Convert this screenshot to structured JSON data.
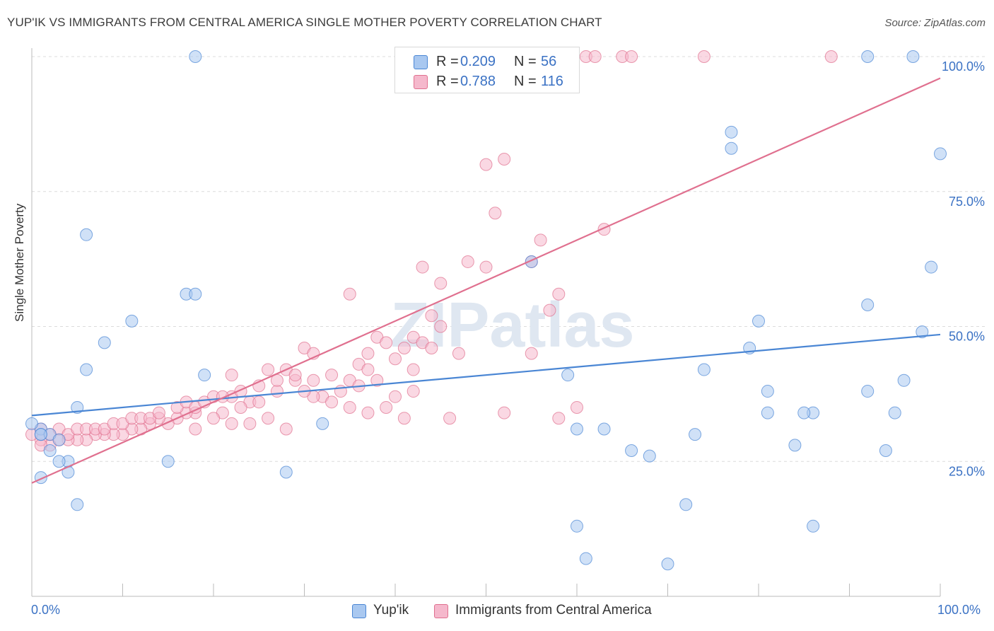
{
  "title": "YUP'IK VS IMMIGRANTS FROM CENTRAL AMERICA SINGLE MOTHER POVERTY CORRELATION CHART",
  "source": "Source: ZipAtlas.com",
  "watermark": "ZIPatlas",
  "stats": [
    {
      "r_label": "R =",
      "r_value": "0.209",
      "n_label": "N =",
      "n_value": "56",
      "color": "#a9c8f0"
    },
    {
      "r_label": "R =",
      "r_value": "0.788",
      "n_label": "N =",
      "n_value": "116",
      "color": "#f5b8cc"
    }
  ],
  "legend": [
    {
      "label": "Yup'ik",
      "color": "#a9c8f0"
    },
    {
      "label": "Immigrants from Central America",
      "color": "#f5b8cc"
    }
  ],
  "chart_data": {
    "type": "scatter",
    "ylabel": "Single Mother Poverty",
    "xlabel": "",
    "x_tick_labels": [
      "0.0%",
      "100.0%"
    ],
    "y_tick_labels": [
      "25.0%",
      "50.0%",
      "75.0%",
      "100.0%"
    ],
    "y_ticks": [
      25,
      50,
      75,
      100
    ],
    "xlim": [
      0,
      100
    ],
    "ylim": [
      0,
      100
    ],
    "grid": true,
    "legend_position": "bottom",
    "series": [
      {
        "name": "Yup'ik",
        "color": "#4a86d4",
        "fill": "#a9c8f0",
        "trend": {
          "x": [
            0,
            100
          ],
          "y": [
            33.5,
            48.5
          ]
        },
        "points": [
          [
            18,
            100
          ],
          [
            92,
            100
          ],
          [
            97,
            100
          ],
          [
            77,
            86
          ],
          [
            77,
            83
          ],
          [
            100,
            82
          ],
          [
            6,
            67
          ],
          [
            55,
            62
          ],
          [
            17,
            56
          ],
          [
            18,
            56
          ],
          [
            11,
            51
          ],
          [
            99,
            61
          ],
          [
            92,
            54
          ],
          [
            80,
            51
          ],
          [
            98,
            49
          ],
          [
            8,
            47
          ],
          [
            79,
            46
          ],
          [
            6,
            42
          ],
          [
            19,
            41
          ],
          [
            59,
            41
          ],
          [
            74,
            42
          ],
          [
            96,
            40
          ],
          [
            81,
            38
          ],
          [
            92,
            38
          ],
          [
            5,
            35
          ],
          [
            32,
            32
          ],
          [
            81,
            34
          ],
          [
            86,
            34
          ],
          [
            85,
            34
          ],
          [
            95,
            34
          ],
          [
            1,
            31
          ],
          [
            1,
            30
          ],
          [
            2,
            30
          ],
          [
            3,
            29
          ],
          [
            4,
            25
          ],
          [
            4,
            23
          ],
          [
            15,
            25
          ],
          [
            28,
            23
          ],
          [
            60,
            31
          ],
          [
            63,
            31
          ],
          [
            66,
            27
          ],
          [
            68,
            26
          ],
          [
            73,
            30
          ],
          [
            84,
            28
          ],
          [
            94,
            27
          ],
          [
            1,
            22
          ],
          [
            5,
            17
          ],
          [
            72,
            17
          ],
          [
            60,
            13
          ],
          [
            86,
            13
          ],
          [
            61,
            7
          ],
          [
            70,
            6
          ],
          [
            0,
            32
          ],
          [
            1,
            30
          ],
          [
            2,
            27
          ],
          [
            3,
            25
          ]
        ]
      },
      {
        "name": "Immigrants from Central America",
        "color": "#e0708f",
        "fill": "#f5b8cc",
        "trend": {
          "x": [
            0,
            100
          ],
          "y": [
            21,
            96
          ]
        },
        "points": [
          [
            61,
            100
          ],
          [
            62,
            100
          ],
          [
            65,
            100
          ],
          [
            66,
            100
          ],
          [
            74,
            100
          ],
          [
            88,
            100
          ],
          [
            50,
            80
          ],
          [
            52,
            81
          ],
          [
            51,
            71
          ],
          [
            63,
            68
          ],
          [
            56,
            66
          ],
          [
            43,
            61
          ],
          [
            48,
            62
          ],
          [
            50,
            61
          ],
          [
            55,
            62
          ],
          [
            45,
            58
          ],
          [
            35,
            56
          ],
          [
            58,
            56
          ],
          [
            57,
            53
          ],
          [
            44,
            52
          ],
          [
            45,
            50
          ],
          [
            38,
            48
          ],
          [
            42,
            48
          ],
          [
            43,
            47
          ],
          [
            30,
            46
          ],
          [
            31,
            45
          ],
          [
            37,
            45
          ],
          [
            40,
            44
          ],
          [
            47,
            45
          ],
          [
            39,
            47
          ],
          [
            41,
            46
          ],
          [
            44,
            46
          ],
          [
            55,
            45
          ],
          [
            42,
            42
          ],
          [
            36,
            43
          ],
          [
            37,
            42
          ],
          [
            33,
            41
          ],
          [
            35,
            40
          ],
          [
            38,
            40
          ],
          [
            31,
            40
          ],
          [
            28,
            42
          ],
          [
            29,
            40
          ],
          [
            26,
            42
          ],
          [
            22,
            41
          ],
          [
            42,
            38
          ],
          [
            40,
            37
          ],
          [
            34,
            38
          ],
          [
            32,
            37
          ],
          [
            36,
            39
          ],
          [
            31,
            37
          ],
          [
            27,
            38
          ],
          [
            24,
            36
          ],
          [
            25,
            36
          ],
          [
            22,
            37
          ],
          [
            23,
            35
          ],
          [
            21,
            34
          ],
          [
            20,
            33
          ],
          [
            18,
            34
          ],
          [
            17,
            34
          ],
          [
            16,
            33
          ],
          [
            15,
            32
          ],
          [
            14,
            33
          ],
          [
            13,
            32
          ],
          [
            12,
            31
          ],
          [
            11,
            31
          ],
          [
            10,
            30
          ],
          [
            9,
            30
          ],
          [
            8,
            30
          ],
          [
            7,
            30
          ],
          [
            6,
            29
          ],
          [
            5,
            29
          ],
          [
            4,
            29
          ],
          [
            3,
            29
          ],
          [
            2,
            28
          ],
          [
            1,
            29
          ],
          [
            1,
            28
          ],
          [
            0,
            30
          ],
          [
            1,
            31
          ],
          [
            2,
            30
          ],
          [
            3,
            31
          ],
          [
            4,
            30
          ],
          [
            5,
            31
          ],
          [
            6,
            31
          ],
          [
            7,
            31
          ],
          [
            8,
            31
          ],
          [
            9,
            32
          ],
          [
            10,
            32
          ],
          [
            11,
            33
          ],
          [
            12,
            33
          ],
          [
            13,
            33
          ],
          [
            14,
            34
          ],
          [
            16,
            35
          ],
          [
            17,
            36
          ],
          [
            18,
            35
          ],
          [
            19,
            36
          ],
          [
            20,
            37
          ],
          [
            21,
            37
          ],
          [
            23,
            38
          ],
          [
            25,
            39
          ],
          [
            27,
            40
          ],
          [
            29,
            41
          ],
          [
            30,
            38
          ],
          [
            33,
            36
          ],
          [
            35,
            35
          ],
          [
            37,
            34
          ],
          [
            39,
            35
          ],
          [
            41,
            33
          ],
          [
            46,
            33
          ],
          [
            52,
            34
          ],
          [
            58,
            33
          ],
          [
            60,
            35
          ],
          [
            26,
            33
          ],
          [
            24,
            32
          ],
          [
            22,
            32
          ],
          [
            28,
            31
          ],
          [
            18,
            31
          ]
        ]
      }
    ]
  }
}
